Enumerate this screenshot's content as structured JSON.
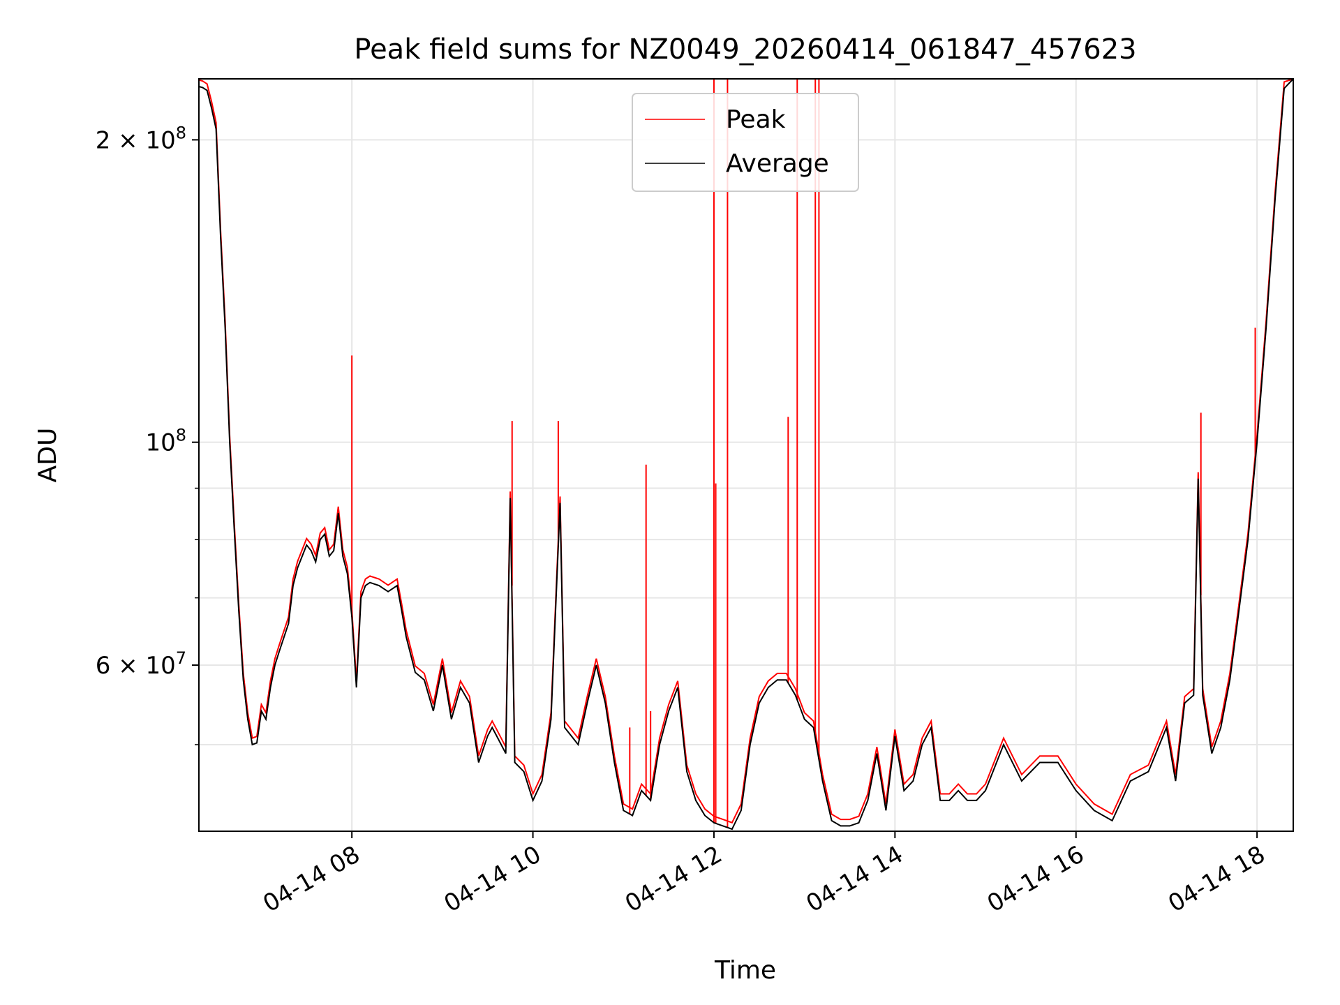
{
  "chart_data": {
    "type": "line",
    "title": "Peak field sums for NZ0049_20260414_061847_457623",
    "xlabel": "Time",
    "ylabel": "ADU",
    "yscale": "log",
    "grid": true,
    "legend_position": "upper center",
    "xlim_hours": [
      6.31,
      18.4
    ],
    "ylim": [
      41000000,
      230000000
    ],
    "x_ticks": [
      {
        "hour": 8,
        "label": "04-14 08"
      },
      {
        "hour": 10,
        "label": "04-14 10"
      },
      {
        "hour": 12,
        "label": "04-14 12"
      },
      {
        "hour": 14,
        "label": "04-14 14"
      },
      {
        "hour": 16,
        "label": "04-14 16"
      },
      {
        "hour": 18,
        "label": "04-14 18"
      }
    ],
    "y_ticks_major": [
      {
        "value": 100000000,
        "base": "10",
        "exp": "8"
      },
      {
        "value": 200000000,
        "base": "2 × 10",
        "exp": "8"
      },
      {
        "value": 60000000,
        "base": "6 × 10",
        "exp": "7"
      }
    ],
    "y_ticks_minor": [
      50000000,
      70000000,
      80000000,
      90000000
    ],
    "legend": [
      "Peak",
      "Average"
    ],
    "colors": {
      "peak": "#ff0000",
      "average": "#000000"
    },
    "series": [
      {
        "name": "Average",
        "x_hours": [
          6.31,
          6.35,
          6.4,
          6.45,
          6.5,
          6.55,
          6.6,
          6.65,
          6.7,
          6.75,
          6.8,
          6.85,
          6.9,
          6.95,
          7.0,
          7.05,
          7.1,
          7.15,
          7.2,
          7.3,
          7.35,
          7.4,
          7.5,
          7.55,
          7.6,
          7.65,
          7.7,
          7.75,
          7.8,
          7.85,
          7.9,
          7.95,
          8.0,
          8.05,
          8.1,
          8.15,
          8.2,
          8.3,
          8.4,
          8.5,
          8.55,
          8.6,
          8.7,
          8.8,
          8.9,
          9.0,
          9.1,
          9.2,
          9.3,
          9.4,
          9.5,
          9.55,
          9.6,
          9.7,
          9.75,
          9.8,
          9.9,
          10.0,
          10.1,
          10.2,
          10.3,
          10.35,
          10.5,
          10.6,
          10.7,
          10.8,
          10.9,
          11.0,
          11.1,
          11.2,
          11.3,
          11.4,
          11.5,
          11.6,
          11.7,
          11.8,
          11.9,
          12.0,
          12.1,
          12.2,
          12.3,
          12.4,
          12.5,
          12.6,
          12.7,
          12.8,
          12.9,
          13.0,
          13.1,
          13.2,
          13.3,
          13.4,
          13.5,
          13.6,
          13.7,
          13.8,
          13.9,
          14.0,
          14.1,
          14.2,
          14.3,
          14.4,
          14.5,
          14.6,
          14.7,
          14.8,
          14.9,
          15.0,
          15.2,
          15.4,
          15.6,
          15.8,
          16.0,
          16.2,
          16.4,
          16.6,
          16.8,
          17.0,
          17.1,
          17.2,
          17.3,
          17.35,
          17.4,
          17.5,
          17.6,
          17.7,
          17.8,
          17.9,
          18.0,
          18.1,
          18.2,
          18.3,
          18.4
        ],
        "values": [
          226000000,
          225500000,
          224000000,
          215000000,
          205000000,
          160000000,
          130000000,
          100000000,
          82000000,
          68000000,
          58000000,
          53000000,
          50000000,
          50200000,
          54000000,
          53000000,
          57000000,
          60000000,
          62000000,
          66000000,
          72000000,
          75000000,
          79000000,
          78000000,
          76000000,
          80000000,
          81000000,
          77000000,
          78000000,
          85000000,
          77000000,
          74000000,
          67000000,
          57000000,
          70000000,
          72000000,
          72500000,
          72000000,
          71000000,
          72000000,
          68000000,
          64000000,
          59000000,
          58000000,
          54000000,
          60000000,
          53000000,
          57000000,
          55000000,
          48000000,
          51000000,
          52000000,
          51000000,
          49000000,
          88000000,
          48000000,
          47000000,
          44000000,
          46000000,
          53000000,
          87000000,
          52000000,
          50000000,
          55000000,
          60000000,
          55000000,
          48000000,
          43000000,
          42500000,
          45000000,
          44000000,
          50000000,
          54000000,
          57000000,
          47000000,
          44000000,
          42500000,
          41800000,
          41500000,
          41200000,
          43000000,
          50000000,
          55000000,
          57000000,
          58000000,
          58000000,
          56000000,
          53000000,
          52000000,
          46000000,
          42000000,
          41500000,
          41500000,
          41800000,
          44000000,
          49000000,
          43000000,
          51000000,
          45000000,
          46000000,
          50000000,
          52000000,
          44000000,
          44000000,
          45000000,
          44000000,
          44000000,
          45000000,
          50000000,
          46000000,
          48000000,
          48000000,
          45000000,
          43000000,
          42000000,
          46000000,
          47000000,
          52000000,
          46000000,
          55000000,
          56000000,
          92000000,
          56000000,
          49000000,
          52000000,
          58000000,
          68000000,
          80000000,
          100000000,
          130000000,
          175000000,
          225000000,
          230000000
        ]
      },
      {
        "name": "Peak",
        "spikes": [
          {
            "hour": 8.0,
            "value": 122000000
          },
          {
            "hour": 9.77,
            "value": 105000000
          },
          {
            "hour": 10.28,
            "value": 105000000
          },
          {
            "hour": 11.07,
            "value": 52000000
          },
          {
            "hour": 11.25,
            "value": 95000000
          },
          {
            "hour": 11.3,
            "value": 54000000
          },
          {
            "hour": 12.0,
            "value": 230000000
          },
          {
            "hour": 12.02,
            "value": 91000000
          },
          {
            "hour": 12.15,
            "value": 230000000
          },
          {
            "hour": 12.82,
            "value": 106000000
          },
          {
            "hour": 12.92,
            "value": 230000000
          },
          {
            "hour": 13.12,
            "value": 230000000
          },
          {
            "hour": 13.16,
            "value": 230000000
          },
          {
            "hour": 17.38,
            "value": 107000000
          },
          {
            "hour": 17.98,
            "value": 130000000
          }
        ],
        "offset_factor": 1.015
      }
    ]
  }
}
